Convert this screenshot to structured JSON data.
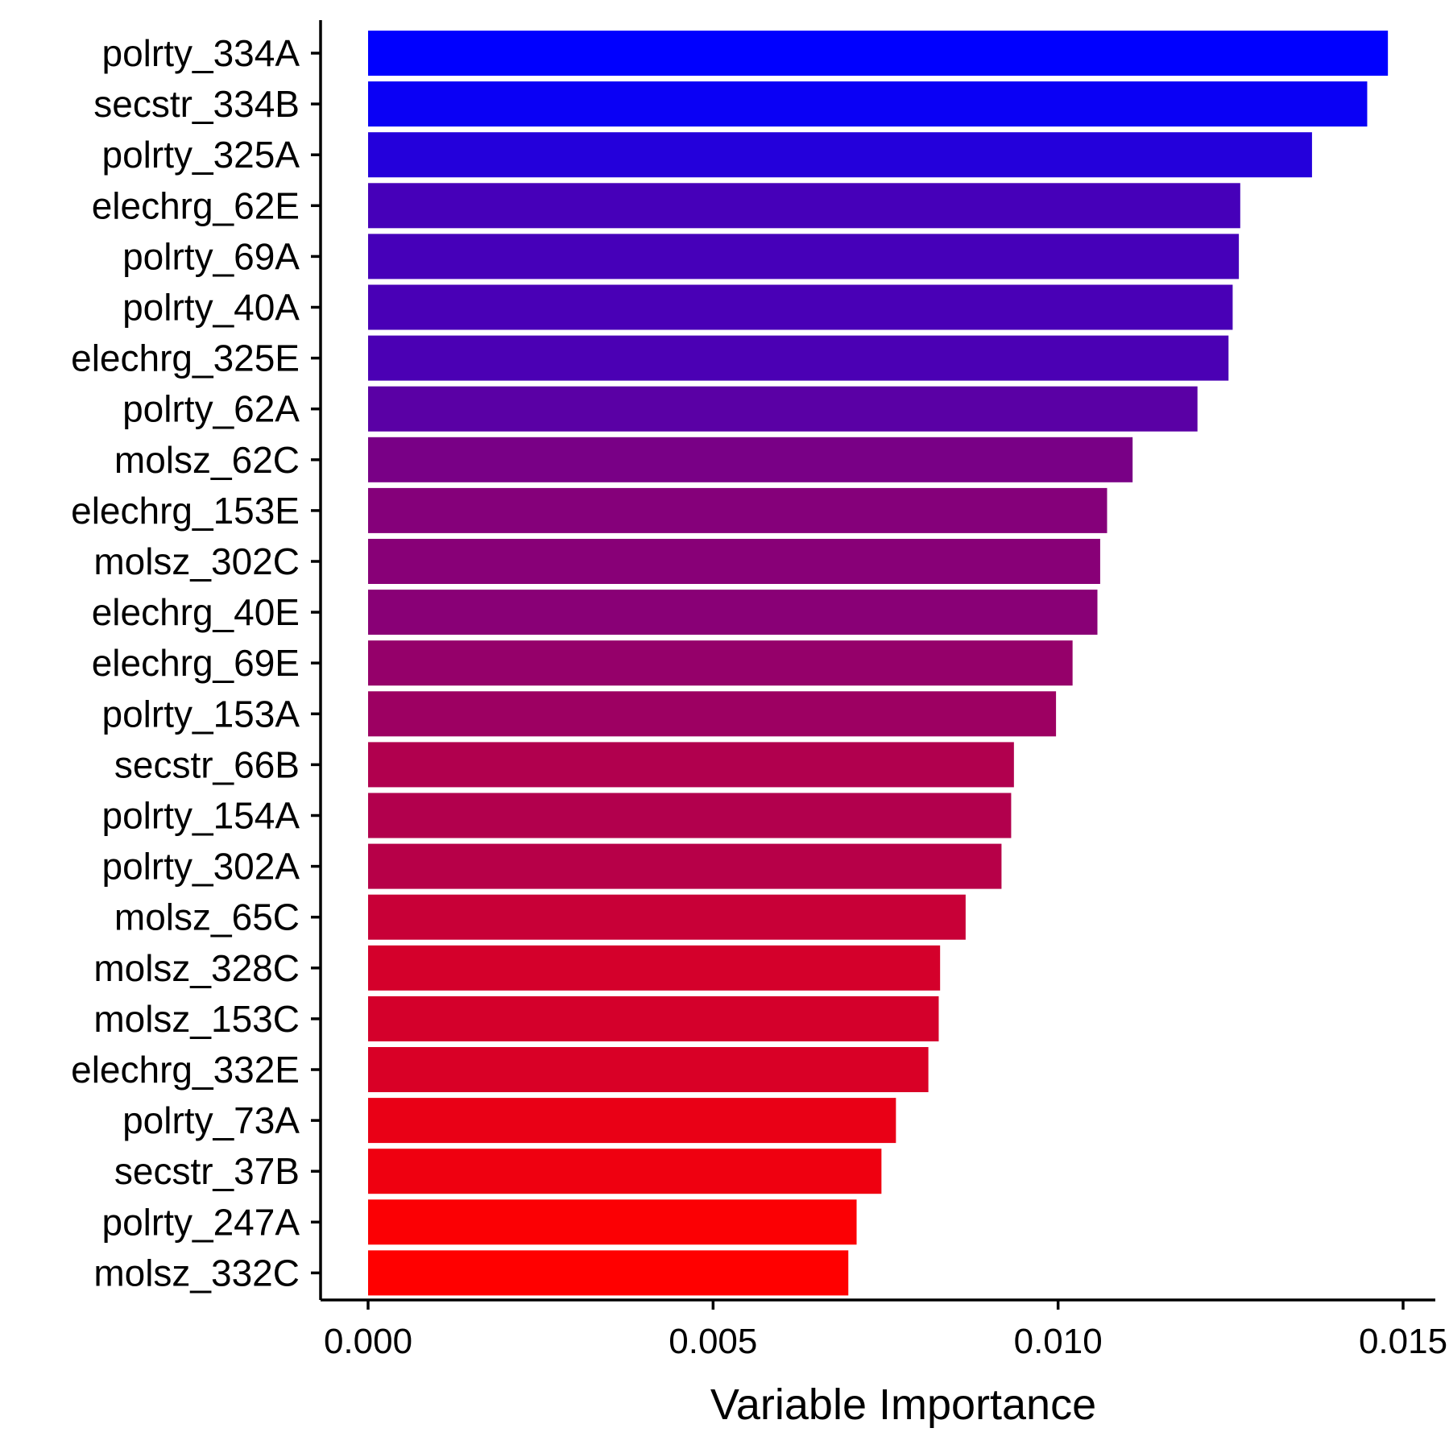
{
  "chart_data": {
    "type": "bar",
    "orientation": "horizontal",
    "title": "",
    "xlabel": "Variable Importance",
    "ylabel": "",
    "xlim": [
      0,
      0.0155
    ],
    "xticks": [
      "0.000",
      "0.005",
      "0.010",
      "0.015"
    ],
    "xtick_values": [
      0.0,
      0.005,
      0.01,
      0.015
    ],
    "grid": false,
    "legend": "none",
    "color_low": "#ff0000",
    "color_high": "#0000ff",
    "categories": [
      "polrty_334A",
      "secstr_334B",
      "polrty_325A",
      "elechrg_62E",
      "polrty_69A",
      "polrty_40A",
      "elechrg_325E",
      "polrty_62A",
      "molsz_62C",
      "elechrg_153E",
      "molsz_302C",
      "elechrg_40E",
      "elechrg_69E",
      "polrty_153A",
      "secstr_66B",
      "polrty_154A",
      "polrty_302A",
      "molsz_65C",
      "molsz_328C",
      "molsz_153C",
      "elechrg_332E",
      "polrty_73A",
      "secstr_37B",
      "polrty_247A",
      "molsz_332C"
    ],
    "values": [
      0.01478,
      0.01448,
      0.01368,
      0.01264,
      0.01262,
      0.01253,
      0.01247,
      0.01202,
      0.01108,
      0.01071,
      0.01061,
      0.01057,
      0.01021,
      0.00997,
      0.00936,
      0.00932,
      0.00918,
      0.00866,
      0.00829,
      0.00827,
      0.00812,
      0.00765,
      0.00744,
      0.00708,
      0.00696
    ]
  }
}
